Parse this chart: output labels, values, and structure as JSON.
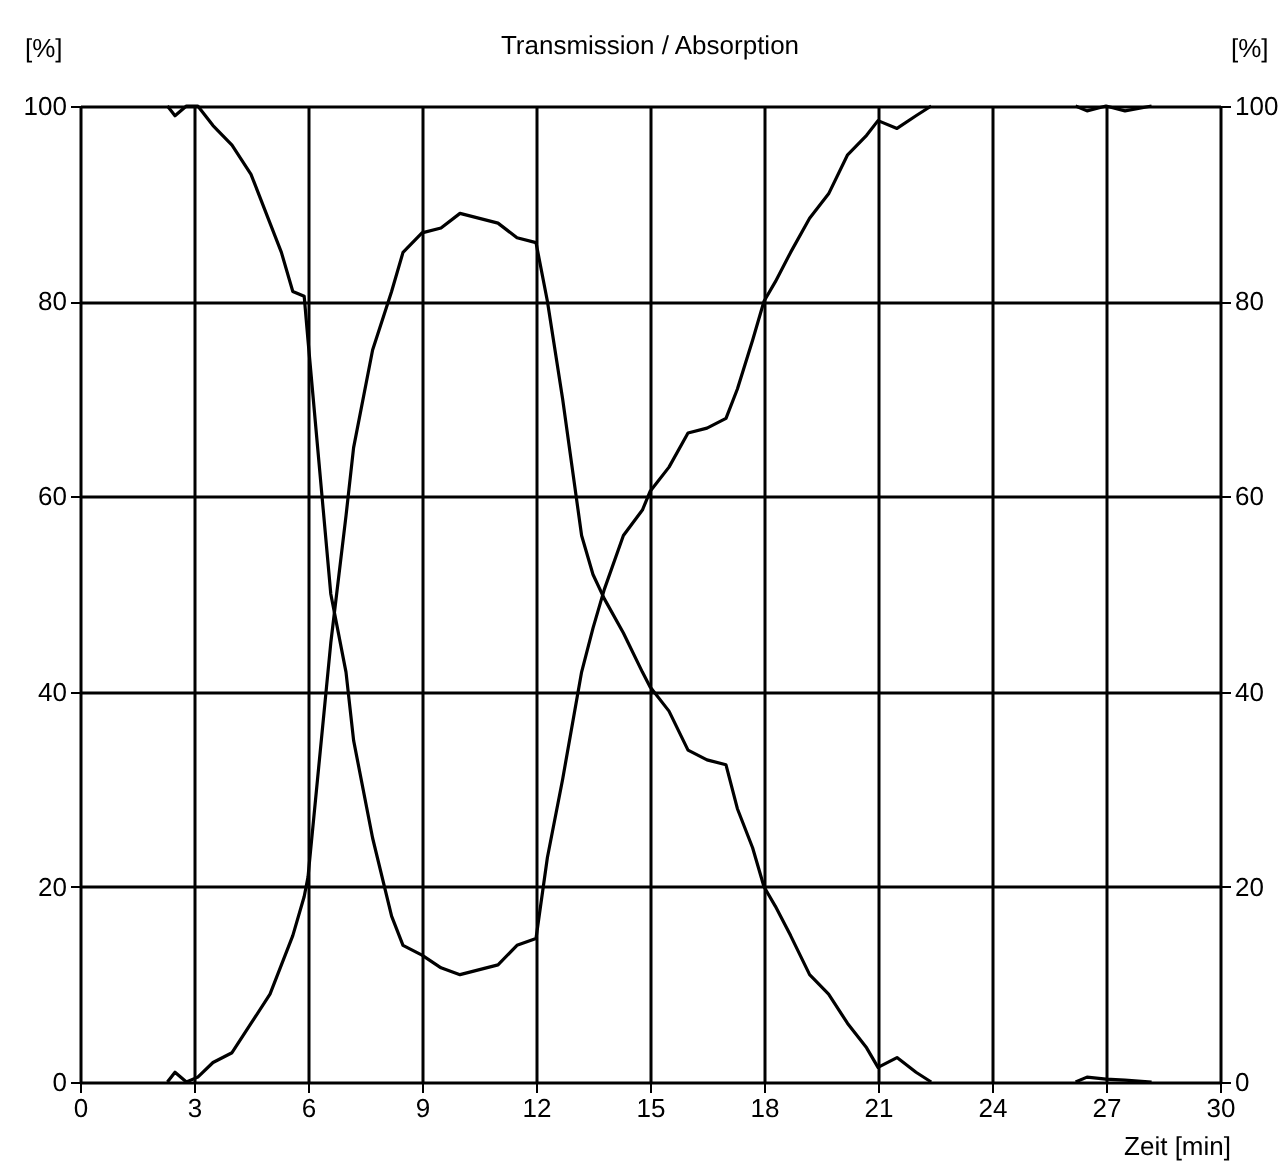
{
  "chart_data": {
    "type": "line",
    "title": "Transmission / Absorption",
    "xlabel": "Zeit [min]",
    "ylabel": "[%]",
    "y2label": "[%]",
    "x": [
      2.3,
      2.5,
      2.8,
      3.1,
      3.5,
      4,
      4.5,
      5,
      5.3,
      5.6,
      5.9,
      6,
      6.6,
      7,
      7.2,
      7.7,
      8.2,
      8.5,
      9,
      9.5,
      10,
      11,
      11.5,
      12,
      12.3,
      12.7,
      13.2,
      13.5,
      13.8,
      14.3,
      14.8,
      15,
      15.5,
      16,
      16.5,
      17,
      17.3,
      17.7,
      18,
      18.3,
      18.7,
      19.2,
      19.7,
      20.2,
      20.7,
      21,
      21.5,
      22,
      22.4,
      24,
      26.2,
      26.5,
      27,
      27.5,
      28.2
    ],
    "series": [
      {
        "color": "#000000",
        "values": [
          100,
          99,
          100,
          100,
          98,
          96,
          93,
          88,
          85,
          81,
          80.5,
          76,
          50,
          42,
          35,
          25,
          17,
          14,
          13,
          11.7,
          11,
          12,
          14,
          14.7,
          23,
          31,
          42,
          46.5,
          50.5,
          56,
          58.6,
          60.5,
          63,
          66.5,
          67,
          68,
          71,
          76,
          80,
          82,
          85,
          88.5,
          91,
          95,
          97,
          98.5,
          97.7,
          99,
          100,
          null,
          100,
          99.5,
          100,
          99.5,
          100
        ]
      },
      {
        "color": "#000000",
        "values": [
          0,
          1,
          0,
          0.5,
          2,
          3,
          6,
          9,
          12,
          15,
          19,
          21,
          45,
          58,
          65,
          75,
          81,
          85,
          87,
          87.5,
          89,
          88,
          86.5,
          86,
          80,
          70,
          56,
          52,
          49.5,
          46,
          42,
          40.5,
          38,
          34,
          33,
          32.5,
          28,
          24,
          20,
          18,
          15,
          11,
          9,
          6,
          3.5,
          1.5,
          2.5,
          1,
          0,
          null,
          0,
          0.5,
          0.3,
          0.2,
          0
        ]
      }
    ],
    "xlim": [
      0,
      30
    ],
    "xticks": [
      0,
      3,
      6,
      9,
      12,
      15,
      18,
      21,
      24,
      27,
      30
    ],
    "ylim": [
      0,
      100
    ],
    "yticks": [
      0,
      20,
      40,
      60,
      80,
      100
    ],
    "y2lim": [
      0,
      100
    ],
    "y2ticks": [
      0,
      20,
      40,
      60,
      80,
      100
    ],
    "grid": true,
    "marker": "none",
    "line_style": "solid"
  }
}
